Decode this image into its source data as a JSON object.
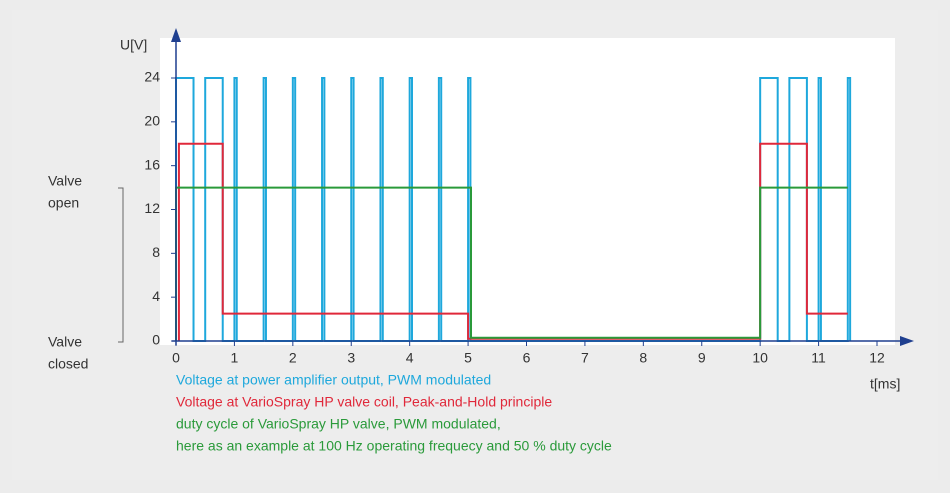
{
  "chart_data": {
    "type": "line",
    "y_label": "U[V]",
    "x_label": "t[ms]",
    "xlim": [
      0,
      12
    ],
    "ylim": [
      0,
      24
    ],
    "xticks": [
      0,
      1,
      2,
      3,
      4,
      5,
      6,
      7,
      8,
      9,
      10,
      11,
      12
    ],
    "yticks": [
      0,
      4,
      8,
      12,
      16,
      20,
      24
    ],
    "valve_open": [
      "Valve",
      "open"
    ],
    "valve_closed": [
      "Valve",
      "closed"
    ],
    "series": [
      {
        "name": "Voltage at power amplifier output, PWM modulated",
        "color": "#1ea8dc",
        "x": [
          0,
          0,
          0.3,
          0.3,
          0.5,
          0.5,
          0.8,
          0.8,
          1,
          1,
          1.04,
          1.04,
          1.5,
          1.5,
          1.54,
          1.54,
          2,
          2,
          2.04,
          2.04,
          2.5,
          2.5,
          2.54,
          2.54,
          3,
          3,
          3.04,
          3.04,
          3.5,
          3.5,
          3.54,
          3.54,
          4,
          4,
          4.04,
          4.04,
          4.5,
          4.5,
          4.54,
          4.54,
          5,
          5,
          5.04,
          5.04,
          10,
          10,
          10.3,
          10.3,
          10.5,
          10.5,
          10.8,
          10.8,
          11,
          11,
          11.04,
          11.04,
          11.5,
          11.5,
          11.54,
          11.54
        ],
        "values": [
          0,
          24,
          24,
          0,
          0,
          24,
          24,
          0,
          0,
          24,
          24,
          0,
          0,
          24,
          24,
          0,
          0,
          24,
          24,
          0,
          0,
          24,
          24,
          0,
          0,
          24,
          24,
          0,
          0,
          24,
          24,
          0,
          0,
          24,
          24,
          0,
          0,
          24,
          24,
          0,
          0,
          24,
          24,
          0,
          0,
          24,
          24,
          0,
          0,
          24,
          24,
          0,
          0,
          24,
          24,
          0,
          0,
          24,
          24,
          0
        ]
      },
      {
        "name": "Voltage at VarioSpray HP valve coil, Peak-and-Hold principle",
        "color": "#e0283a",
        "x": [
          0.05,
          0.05,
          0.8,
          0.8,
          5.0,
          5.0,
          10.0,
          10.0,
          10.8,
          10.8,
          11.5
        ],
        "values": [
          0,
          18,
          18,
          2.5,
          2.5,
          0.2,
          0.2,
          18,
          18,
          2.5,
          2.5
        ]
      },
      {
        "name": "duty cycle of VarioSpray HP valve, PWM modulated,",
        "color": "#2a9a3a",
        "x": [
          0,
          0,
          5.05,
          5.05,
          10.0,
          10.0,
          11.5
        ],
        "values": [
          0,
          14,
          14,
          0.3,
          0.3,
          14,
          14
        ]
      }
    ],
    "note": "here as an example at 100 Hz operating frequecy and 50 % duty cycle"
  }
}
